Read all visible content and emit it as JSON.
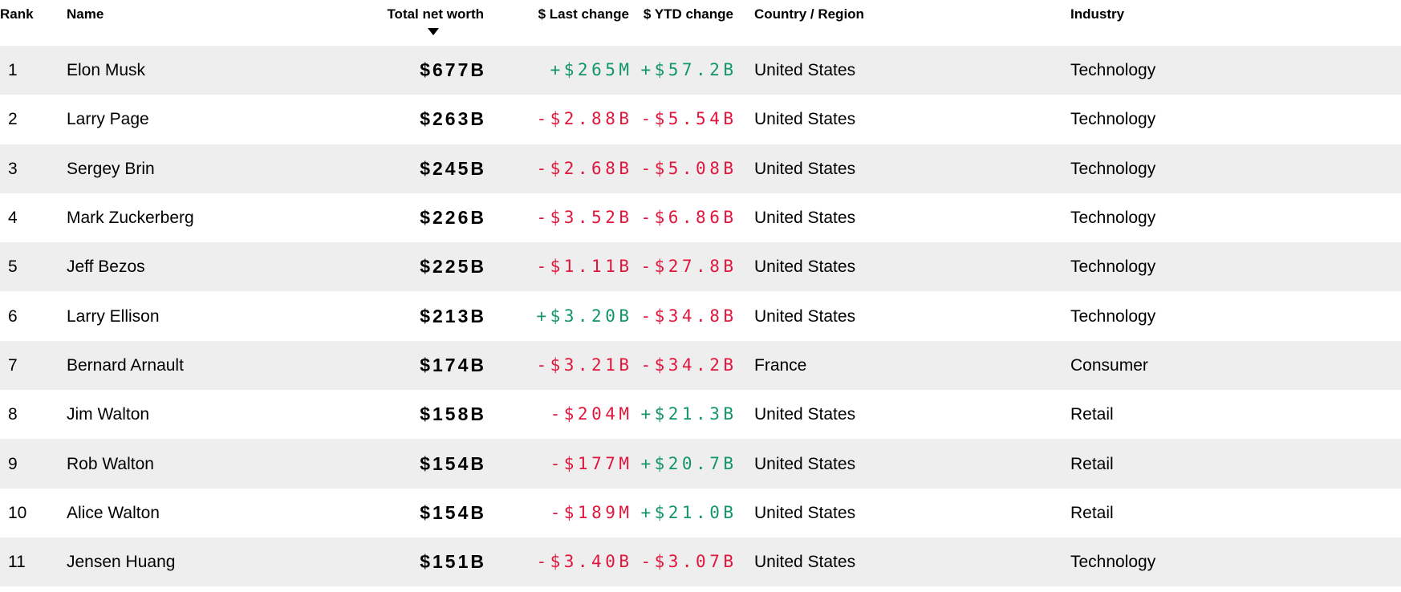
{
  "table": {
    "columns": [
      {
        "key": "rank",
        "label": "Rank"
      },
      {
        "key": "name",
        "label": "Name"
      },
      {
        "key": "net_worth",
        "label": "Total net worth",
        "sorted": "descending"
      },
      {
        "key": "last_change",
        "label": "$ Last change"
      },
      {
        "key": "ytd_change",
        "label": "$ YTD change"
      },
      {
        "key": "country",
        "label": "Country / Region"
      },
      {
        "key": "industry",
        "label": "Industry"
      }
    ],
    "rows": [
      {
        "rank": "1",
        "name": "Elon Musk",
        "net_worth": "$677B",
        "last_change": "+$265M",
        "ytd_change": "+$57.2B",
        "country": "United States",
        "industry": "Technology"
      },
      {
        "rank": "2",
        "name": "Larry Page",
        "net_worth": "$263B",
        "last_change": "-$2.88B",
        "ytd_change": "-$5.54B",
        "country": "United States",
        "industry": "Technology"
      },
      {
        "rank": "3",
        "name": "Sergey Brin",
        "net_worth": "$245B",
        "last_change": "-$2.68B",
        "ytd_change": "-$5.08B",
        "country": "United States",
        "industry": "Technology"
      },
      {
        "rank": "4",
        "name": "Mark Zuckerberg",
        "net_worth": "$226B",
        "last_change": "-$3.52B",
        "ytd_change": "-$6.86B",
        "country": "United States",
        "industry": "Technology"
      },
      {
        "rank": "5",
        "name": "Jeff Bezos",
        "net_worth": "$225B",
        "last_change": "-$1.11B",
        "ytd_change": "-$27.8B",
        "country": "United States",
        "industry": "Technology"
      },
      {
        "rank": "6",
        "name": "Larry Ellison",
        "net_worth": "$213B",
        "last_change": "+$3.20B",
        "ytd_change": "-$34.8B",
        "country": "United States",
        "industry": "Technology"
      },
      {
        "rank": "7",
        "name": "Bernard Arnault",
        "net_worth": "$174B",
        "last_change": "-$3.21B",
        "ytd_change": "-$34.2B",
        "country": "France",
        "industry": "Consumer"
      },
      {
        "rank": "8",
        "name": "Jim Walton",
        "net_worth": "$158B",
        "last_change": "-$204M",
        "ytd_change": "+$21.3B",
        "country": "United States",
        "industry": "Retail"
      },
      {
        "rank": "9",
        "name": "Rob Walton",
        "net_worth": "$154B",
        "last_change": "-$177M",
        "ytd_change": "+$20.7B",
        "country": "United States",
        "industry": "Retail"
      },
      {
        "rank": "10",
        "name": "Alice Walton",
        "net_worth": "$154B",
        "last_change": "-$189M",
        "ytd_change": "+$21.0B",
        "country": "United States",
        "industry": "Retail"
      },
      {
        "rank": "11",
        "name": "Jensen Huang",
        "net_worth": "$151B",
        "last_change": "-$3.40B",
        "ytd_change": "-$3.07B",
        "country": "United States",
        "industry": "Technology"
      }
    ]
  },
  "icons": {
    "sort_descending": "down-triangle"
  },
  "colors": {
    "positive_change": "#129569",
    "negative_change": "#e0163c",
    "row_alternate_bg": "#eeeeee",
    "text": "#000000"
  }
}
